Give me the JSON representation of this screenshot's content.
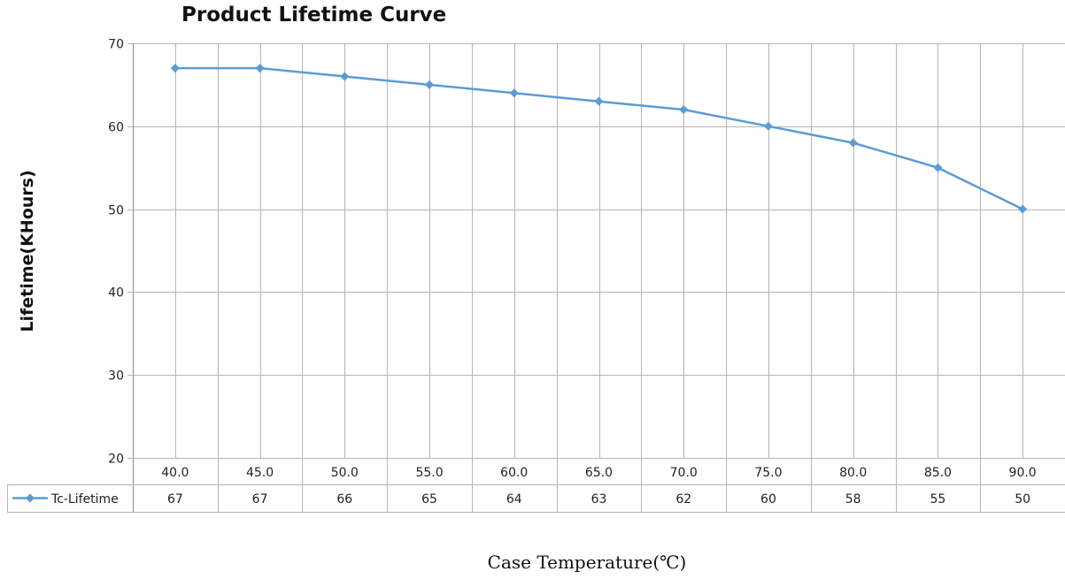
{
  "chart_data": {
    "type": "line",
    "title": "Product Lifetime Curve",
    "xlabel": "Case Temperature(℃)",
    "ylabel": "Lifetime(KHours)",
    "categories": [
      "40.0",
      "45.0",
      "50.0",
      "55.0",
      "60.0",
      "65.0",
      "70.0",
      "75.0",
      "80.0",
      "85.0",
      "90.0"
    ],
    "series": [
      {
        "name": "Tc-Lifetime",
        "values": [
          67,
          67,
          66,
          65,
          64,
          63,
          62,
          60,
          58,
          55,
          50
        ],
        "color": "#5b9bd5"
      }
    ],
    "yticks": [
      20,
      30,
      40,
      50,
      60,
      70
    ],
    "ylim": [
      20,
      70
    ],
    "grid": true,
    "legend": "data-table-left"
  }
}
